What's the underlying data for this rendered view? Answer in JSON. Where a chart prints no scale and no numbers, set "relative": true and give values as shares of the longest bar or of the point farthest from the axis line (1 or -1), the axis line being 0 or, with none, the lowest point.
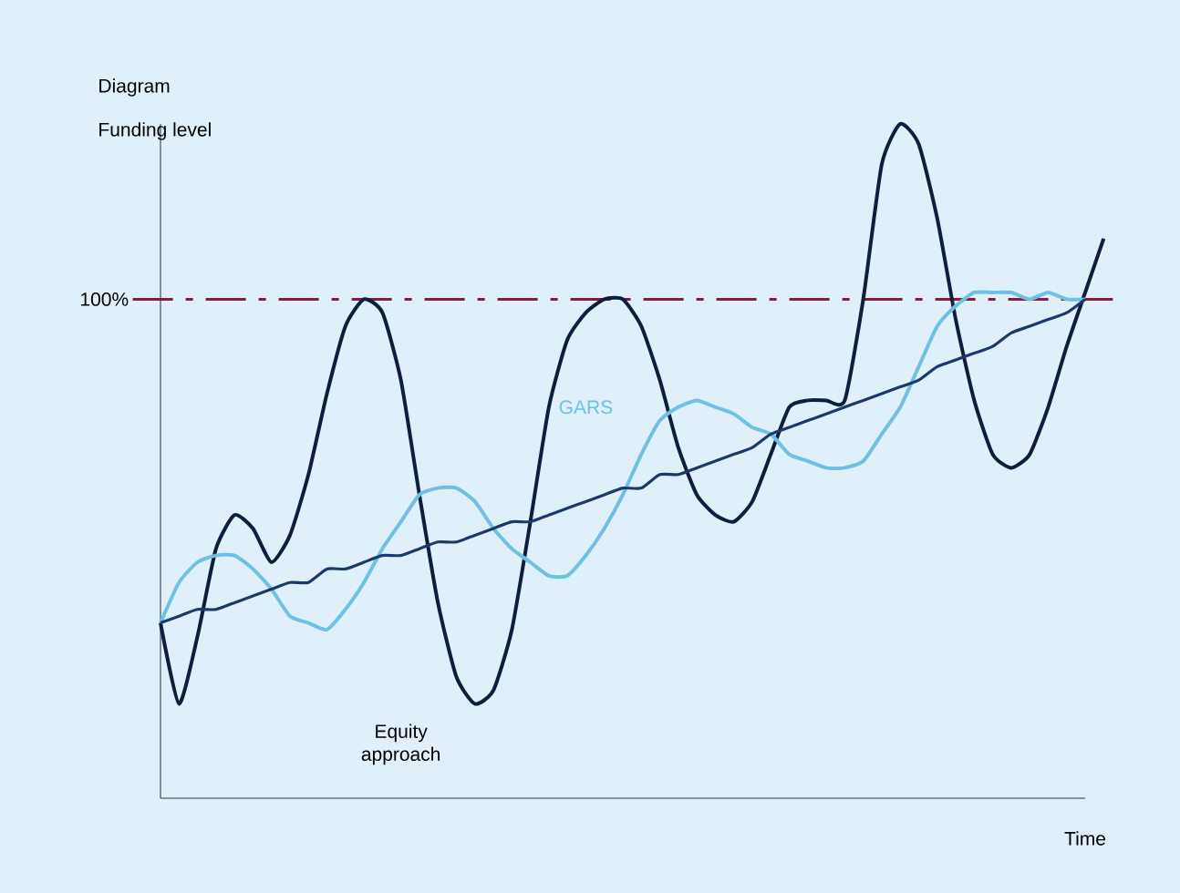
{
  "chart_data": {
    "type": "line",
    "title": "Diagram",
    "ylabel": "Funding level",
    "xlabel": "Time",
    "relative": true,
    "marker": "none",
    "categories": [
      null,
      null,
      null,
      null,
      null,
      null,
      null,
      null,
      null,
      null,
      null,
      null,
      null,
      null,
      null,
      null,
      null,
      null,
      null,
      null,
      null,
      null,
      null,
      null,
      null,
      null,
      null,
      null,
      null,
      null,
      null,
      null,
      null,
      null,
      null,
      null,
      null,
      null,
      null,
      null,
      null,
      null,
      null,
      null,
      null,
      null,
      null,
      null,
      null,
      null,
      null,
      null
    ],
    "series": [
      {
        "name": "Equity approach",
        "color": "#0d1f3c",
        "values": [
          0.26,
          0.14,
          0.24,
          0.37,
          0.42,
          0.4,
          0.35,
          0.39,
          0.48,
          0.6,
          0.7,
          0.74,
          0.72,
          0.62,
          0.45,
          0.29,
          0.18,
          0.14,
          0.16,
          0.25,
          0.41,
          0.58,
          0.68,
          0.72,
          0.74,
          0.74,
          0.7,
          0.62,
          0.52,
          0.45,
          0.42,
          0.41,
          0.44,
          0.51,
          0.58,
          0.59,
          0.59,
          0.59,
          0.74,
          0.94,
          1.0,
          0.97,
          0.86,
          0.71,
          0.59,
          0.51,
          0.49,
          0.51,
          0.58,
          0.67,
          0.75,
          0.83
        ]
      },
      {
        "name": "GARS",
        "color": "#6ec1e4",
        "values": [
          0.26,
          0.32,
          0.35,
          0.36,
          0.36,
          0.34,
          0.31,
          0.27,
          0.26,
          0.25,
          0.28,
          0.32,
          0.37,
          0.41,
          0.45,
          0.46,
          0.46,
          0.44,
          0.4,
          0.37,
          0.35,
          0.33,
          0.33,
          0.36,
          0.4,
          0.45,
          0.51,
          0.56,
          0.58,
          0.59,
          0.58,
          0.57,
          0.55,
          0.54,
          0.51,
          0.5,
          0.49,
          0.49,
          0.5,
          0.54,
          0.58,
          0.64,
          0.7,
          0.73,
          0.75,
          0.75,
          0.75,
          0.74,
          0.75,
          0.74,
          0.74,
          null
        ]
      },
      {
        "color": "#1b3a6b",
        "values": [
          0.26,
          0.27,
          0.28,
          0.28,
          0.29,
          0.3,
          0.31,
          0.32,
          0.32,
          0.34,
          0.34,
          0.35,
          0.36,
          0.36,
          0.37,
          0.38,
          0.38,
          0.39,
          0.4,
          0.41,
          0.41,
          0.42,
          0.43,
          0.44,
          0.45,
          0.46,
          0.46,
          0.48,
          0.48,
          0.49,
          0.5,
          0.51,
          0.52,
          0.54,
          0.55,
          0.56,
          0.57,
          0.58,
          0.59,
          0.6,
          0.61,
          0.62,
          0.64,
          0.65,
          0.66,
          0.67,
          0.69,
          0.7,
          0.71,
          0.72,
          0.74,
          null
        ]
      }
    ],
    "annotations": [
      "100%"
    ],
    "ref_lines": [
      {
        "axis": "y",
        "value": 0.74,
        "color": "#8b1a3a",
        "line_style": "dashdot"
      }
    ]
  }
}
